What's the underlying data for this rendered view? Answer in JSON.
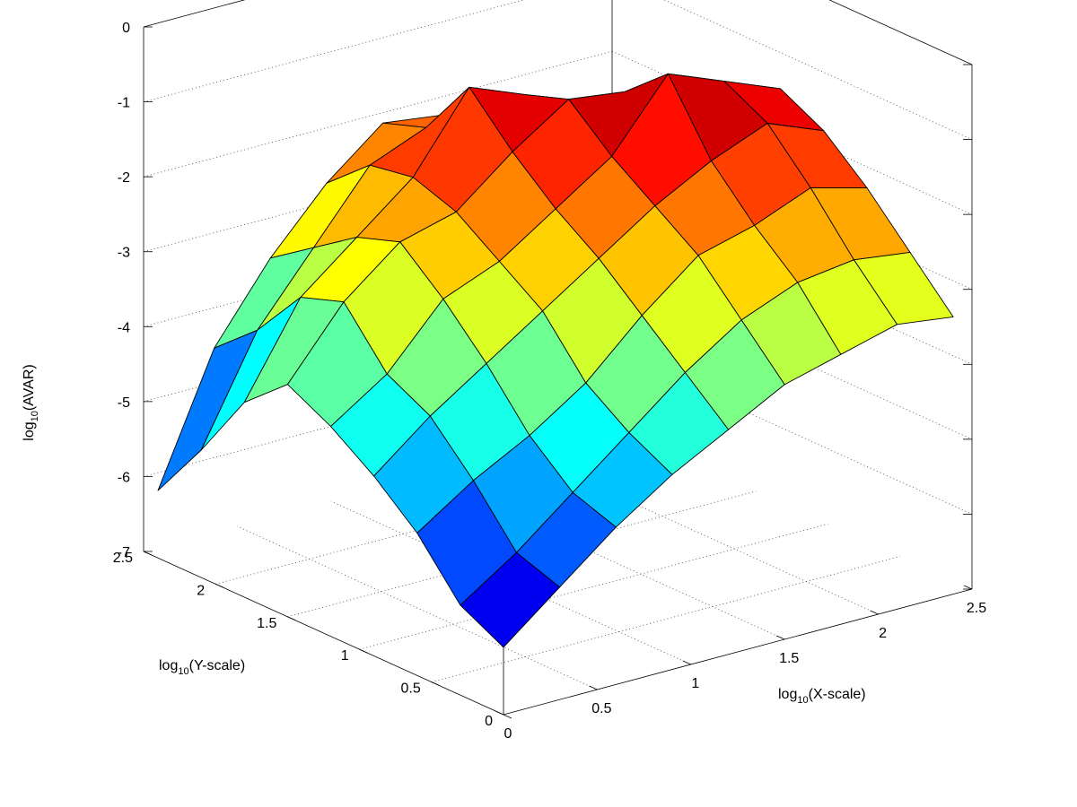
{
  "chart_data": {
    "type": "surface3d",
    "xlabel": {
      "base": "log",
      "sub": "10",
      "rest": "(X-scale)"
    },
    "ylabel": {
      "base": "log",
      "sub": "10",
      "rest": "(Y-scale)"
    },
    "zlabel": {
      "base": "log",
      "sub": "10",
      "rest": "(AVAR)"
    },
    "xlim": [
      0,
      2.5
    ],
    "ylim": [
      0,
      2.5
    ],
    "zlim": [
      -7,
      0
    ],
    "x_ticks": [
      "0",
      "0.5",
      "1",
      "1.5",
      "2",
      "2.5"
    ],
    "y_ticks": [
      "0",
      "0.5",
      "1",
      "1.5",
      "2",
      "2.5"
    ],
    "z_ticks": [
      "-7",
      "-6",
      "-5",
      "-4",
      "-3",
      "-2",
      "-1",
      "0"
    ],
    "grid": true,
    "colormap": "jet",
    "x": [
      0,
      0.3,
      0.6,
      0.9,
      1.2,
      1.5,
      1.8,
      2.1,
      2.4
    ],
    "y": [
      0,
      0.3,
      0.6,
      0.9,
      1.2,
      1.5,
      1.8,
      2.1,
      2.4
    ],
    "z": [
      [
        -6.1,
        -5.8,
        -5.1,
        -4.6,
        -4.2,
        -3.9,
        -4.4,
        -5.3,
        -6.1
      ],
      [
        -5.5,
        -5.3,
        -4.6,
        -4.0,
        -3.7,
        -3.0,
        -3.2,
        -3.9,
        -4.4
      ],
      [
        -4.9,
        -4.7,
        -4.2,
        -3.5,
        -2.9,
        -2.4,
        -2.6,
        -3.0,
        -3.4
      ],
      [
        -4.4,
        -4.1,
        -3.7,
        -3.0,
        -2.6,
        -2.2,
        -2.0,
        -2.1,
        -2.6
      ],
      [
        -4.0,
        -3.5,
        -3.0,
        -2.5,
        -2.1,
        -1.6,
        -1.0,
        -1.8,
        -2.0
      ],
      [
        -3.6,
        -3.0,
        -2.4,
        -2.0,
        -1.6,
        -1.1,
        -1.3,
        -1.9,
        -2.1
      ],
      [
        -3.4,
        -2.7,
        -2.2,
        -1.6,
        -0.7,
        -1.2,
        -1.7,
        -2.1,
        -2.4
      ],
      [
        -3.2,
        -2.6,
        -1.9,
        -1.3,
        -1.0,
        -1.6,
        -2.0,
        -2.4,
        -3.0
      ],
      [
        -3.3,
        -2.7,
        -2.1,
        -1.6,
        -1.3,
        -1.8,
        -2.2,
        -2.7,
        -3.2
      ]
    ]
  }
}
